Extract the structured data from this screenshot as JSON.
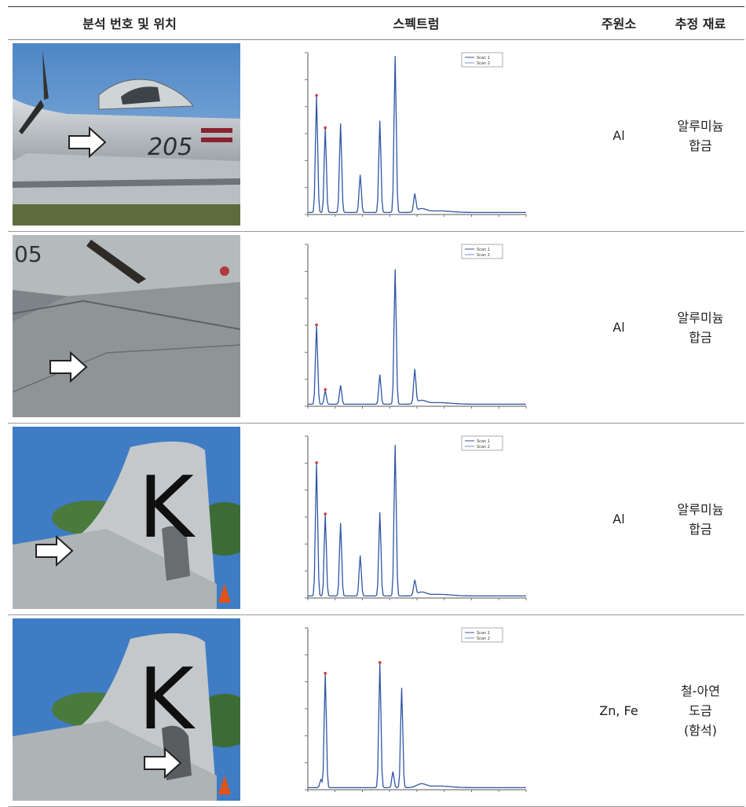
{
  "header": {
    "col1": "분석 번호 및 위치",
    "col2": "스펙트럼",
    "col3": "주원소",
    "col4": "추정 재료"
  },
  "rows": [
    {
      "plane_number": "205",
      "element": "Al",
      "material": [
        "알루미늄",
        "합금"
      ],
      "spectrum": {
        "peaks": [
          [
            4,
            8.6
          ],
          [
            8,
            6.2
          ],
          [
            15,
            6.6
          ],
          [
            24,
            2.8
          ],
          [
            33,
            6.8
          ],
          [
            40,
            11.6
          ],
          [
            49,
            1.3
          ]
        ],
        "legend": [
          "Scan 1",
          "Scan 2"
        ]
      }
    },
    {
      "plane_number": "",
      "element": "Al",
      "material": [
        "알루미늄",
        "합금"
      ],
      "spectrum": {
        "peaks": [
          [
            4,
            5.8
          ],
          [
            8,
            1.0
          ],
          [
            15,
            1.4
          ],
          [
            33,
            2.2
          ],
          [
            40,
            10.0
          ],
          [
            49,
            2.5
          ]
        ],
        "legend": [
          "Scan 1",
          "Scan 2"
        ]
      }
    },
    {
      "plane_number": "K",
      "element": "Al",
      "material": [
        "알루미늄",
        "합금"
      ],
      "spectrum": {
        "peaks": [
          [
            4,
            9.8
          ],
          [
            8,
            6.0
          ],
          [
            15,
            5.4
          ],
          [
            24,
            3.0
          ],
          [
            33,
            6.2
          ],
          [
            40,
            11.2
          ],
          [
            49,
            1.1
          ]
        ],
        "legend": [
          "Scan 1",
          "Scan 2"
        ]
      }
    },
    {
      "plane_number": "K",
      "element": "Zn, Fe",
      "material": [
        "철-아연",
        "도금",
        "(함석)"
      ],
      "spectrum": {
        "peaks": [
          [
            8,
            8.4
          ],
          [
            33,
            9.2
          ],
          [
            43,
            7.4
          ],
          [
            6,
            0.6
          ],
          [
            39,
            1.2
          ]
        ],
        "legend": [
          "Scan 1",
          "Scan 2"
        ]
      }
    }
  ]
}
